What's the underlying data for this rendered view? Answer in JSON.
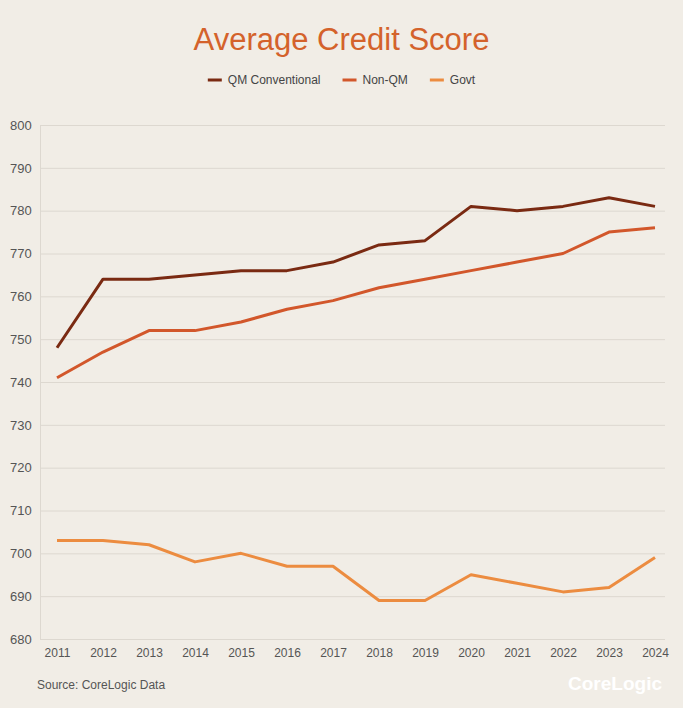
{
  "chart_data": {
    "type": "line",
    "title": "Average Credit Score",
    "x": [
      2011,
      2012,
      2013,
      2014,
      2015,
      2016,
      2017,
      2018,
      2019,
      2020,
      2021,
      2022,
      2023,
      2024
    ],
    "series": [
      {
        "name": "QM Conventional",
        "color": "#7a2a12",
        "values": [
          748,
          764,
          764,
          765,
          766,
          766,
          768,
          772,
          773,
          781,
          780,
          781,
          783,
          781
        ]
      },
      {
        "name": "Non-QM",
        "color": "#d2572b",
        "values": [
          741,
          747,
          752,
          752,
          754,
          757,
          759,
          762,
          764,
          766,
          768,
          770,
          775,
          776
        ]
      },
      {
        "name": "Govt",
        "color": "#ec8c40",
        "values": [
          703,
          703,
          702,
          698,
          700,
          697,
          697,
          689,
          689,
          695,
          693,
          691,
          692,
          699
        ]
      }
    ],
    "xlim": [
      2011,
      2024
    ],
    "xticks": [
      2011,
      2012,
      2013,
      2014,
      2015,
      2016,
      2017,
      2018,
      2019,
      2020,
      2021,
      2022,
      2023,
      2024
    ],
    "ylim": [
      680,
      800
    ],
    "yticks": [
      680,
      690,
      700,
      710,
      720,
      730,
      740,
      750,
      760,
      770,
      780,
      790,
      800
    ],
    "grid": true,
    "legend": "top",
    "annotations": [
      "Source: CoreLogic Data",
      "CoreLogic"
    ]
  }
}
